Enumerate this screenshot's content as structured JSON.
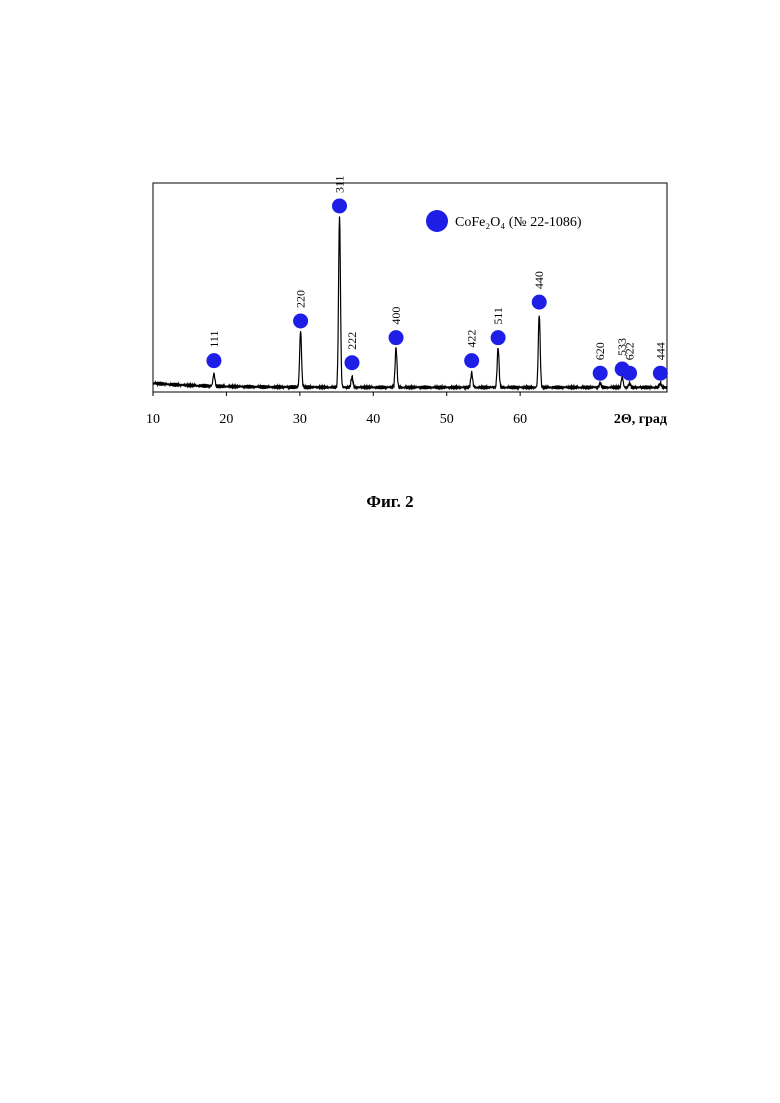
{
  "chart_data": {
    "type": "line",
    "xlabel": "2Θ, град",
    "ylabel": "",
    "xlim": [
      10,
      80
    ],
    "x_ticks": [
      "10",
      "20",
      "30",
      "40",
      "50",
      "60"
    ],
    "legend": {
      "label": "CoFe₂O₄ (№ 22-1086)",
      "marker": "circle",
      "color": "#1e1ee6",
      "position": "top-right"
    },
    "line_color": "#000000",
    "marker_color": "#1e1ee6",
    "peaks": [
      {
        "x": 18.3,
        "height": 0.06,
        "hkl": "111",
        "marker_y": 0.15
      },
      {
        "x": 30.1,
        "height": 0.27,
        "hkl": "220",
        "marker_y": 0.34
      },
      {
        "x": 35.4,
        "height": 0.82,
        "hkl": "311",
        "marker_y": 0.89
      },
      {
        "x": 37.1,
        "height": 0.05,
        "hkl": "222",
        "marker_y": 0.14
      },
      {
        "x": 43.1,
        "height": 0.19,
        "hkl": "400",
        "marker_y": 0.26
      },
      {
        "x": 53.4,
        "height": 0.07,
        "hkl": "422",
        "marker_y": 0.15
      },
      {
        "x": 57.0,
        "height": 0.19,
        "hkl": "511",
        "marker_y": 0.26
      },
      {
        "x": 62.6,
        "height": 0.35,
        "hkl": "440",
        "marker_y": 0.43
      },
      {
        "x": 70.9,
        "height": 0.02,
        "hkl": "620",
        "marker_y": 0.09
      },
      {
        "x": 73.9,
        "height": 0.05,
        "hkl": "533",
        "marker_y": 0.11
      },
      {
        "x": 74.9,
        "height": 0.02,
        "hkl": "622",
        "marker_y": 0.09
      },
      {
        "x": 79.1,
        "height": 0.02,
        "hkl": "444",
        "marker_y": 0.09
      }
    ]
  },
  "figure_caption": "Фиг. 2"
}
